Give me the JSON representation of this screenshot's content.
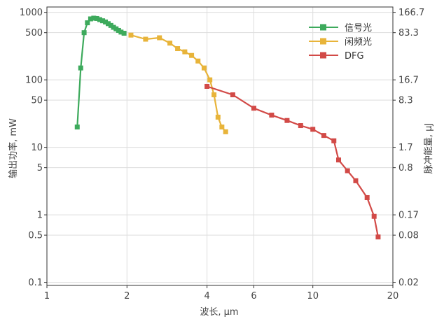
{
  "chart_data": {
    "type": "line",
    "xlabel": "波长, μm",
    "ylabel": "输出功率, mW",
    "y2label": "脉冲能量, μJ",
    "x_scale": "log",
    "y_scale": "log",
    "xlim": [
      1,
      20
    ],
    "ylim": [
      0.09,
      1200
    ],
    "x_ticks": [
      {
        "value": 1,
        "label": "1"
      },
      {
        "value": 2,
        "label": "2"
      },
      {
        "value": 4,
        "label": "4"
      },
      {
        "value": 6,
        "label": "6"
      },
      {
        "value": 10,
        "label": "10"
      },
      {
        "value": 20,
        "label": "20"
      }
    ],
    "y_ticks": [
      {
        "value": 0.1,
        "label": "0.1"
      },
      {
        "value": 0.5,
        "label": "0.5"
      },
      {
        "value": 1,
        "label": "1"
      },
      {
        "value": 5,
        "label": "5"
      },
      {
        "value": 10,
        "label": "10"
      },
      {
        "value": 50,
        "label": "50"
      },
      {
        "value": 100,
        "label": "100"
      },
      {
        "value": 500,
        "label": "500"
      },
      {
        "value": 1000,
        "label": "1000"
      }
    ],
    "y2_ticks": [
      {
        "value": 0.1,
        "label": "0.02"
      },
      {
        "value": 0.5,
        "label": "0.08"
      },
      {
        "value": 1,
        "label": "0.17"
      },
      {
        "value": 5,
        "label": "0.8"
      },
      {
        "value": 10,
        "label": "1.7"
      },
      {
        "value": 50,
        "label": "8.3"
      },
      {
        "value": 100,
        "label": "16.7"
      },
      {
        "value": 500,
        "label": "83.3"
      },
      {
        "value": 1000,
        "label": "166.7"
      }
    ],
    "grid": true,
    "legend_position": "top-right",
    "series": [
      {
        "name": "信号光",
        "color": "#3daa5c",
        "marker": "square",
        "x": [
          1.3,
          1.34,
          1.38,
          1.42,
          1.46,
          1.5,
          1.54,
          1.58,
          1.62,
          1.66,
          1.7,
          1.74,
          1.78,
          1.82,
          1.86,
          1.9,
          1.95
        ],
        "y": [
          20,
          150,
          500,
          700,
          800,
          820,
          810,
          780,
          750,
          720,
          680,
          640,
          600,
          570,
          540,
          510,
          490
        ]
      },
      {
        "name": "闲频光",
        "color": "#e8b43a",
        "marker": "square",
        "x": [
          2.07,
          2.35,
          2.65,
          2.9,
          3.1,
          3.3,
          3.5,
          3.7,
          3.9,
          4.1,
          4.25,
          4.4,
          4.55,
          4.7
        ],
        "y": [
          460,
          400,
          420,
          350,
          290,
          260,
          230,
          190,
          150,
          100,
          60,
          28,
          20,
          17
        ]
      },
      {
        "name": "DFG",
        "color": "#d24a47",
        "marker": "square",
        "x": [
          4.0,
          5.0,
          6.0,
          7.0,
          8.0,
          9.0,
          10.0,
          11.0,
          12.0,
          12.5,
          13.5,
          14.5,
          16.0,
          17.0,
          17.6
        ],
        "y": [
          80,
          60,
          38,
          30,
          25,
          21,
          18.5,
          15,
          12.5,
          6.5,
          4.5,
          3.2,
          1.8,
          0.95,
          0.47
        ]
      }
    ]
  }
}
